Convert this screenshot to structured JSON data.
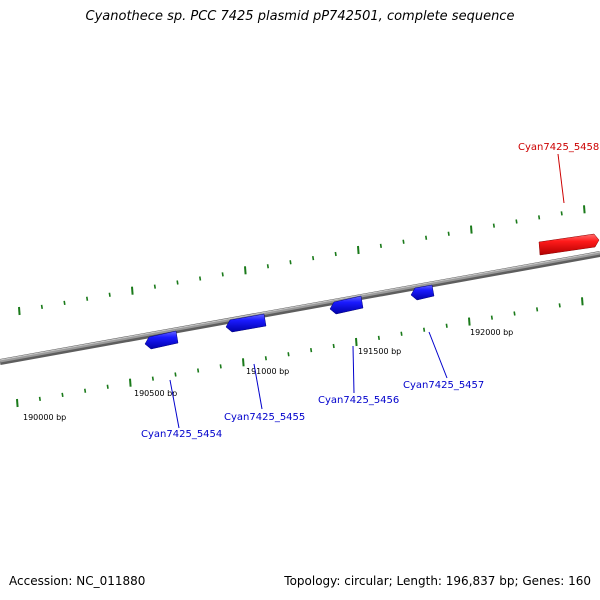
{
  "title": "Cyanothece sp. PCC 7425 plasmid pP742501, complete sequence",
  "footer": {
    "accession": "Accession: NC_011880",
    "topology": "Topology: circular; Length: 196,837 bp; Genes: 160"
  },
  "ticks": [
    {
      "label": "190000 bp"
    },
    {
      "label": "190500 bp"
    },
    {
      "label": "191000 bp"
    },
    {
      "label": "191500 bp"
    },
    {
      "label": "192000 bp"
    }
  ],
  "genes": [
    {
      "name": "Cyan7425_5454",
      "color": "#0000cc"
    },
    {
      "name": "Cyan7425_5455",
      "color": "#0000cc"
    },
    {
      "name": "Cyan7425_5456",
      "color": "#0000cc"
    },
    {
      "name": "Cyan7425_5457",
      "color": "#0000cc"
    },
    {
      "name": "Cyan7425_5458",
      "color": "#cc0000"
    }
  ],
  "colors": {
    "backbone": "#808080",
    "tick": "#1a7a1a",
    "forward_gene": "#ee0000",
    "reverse_gene": "#0000ee"
  }
}
